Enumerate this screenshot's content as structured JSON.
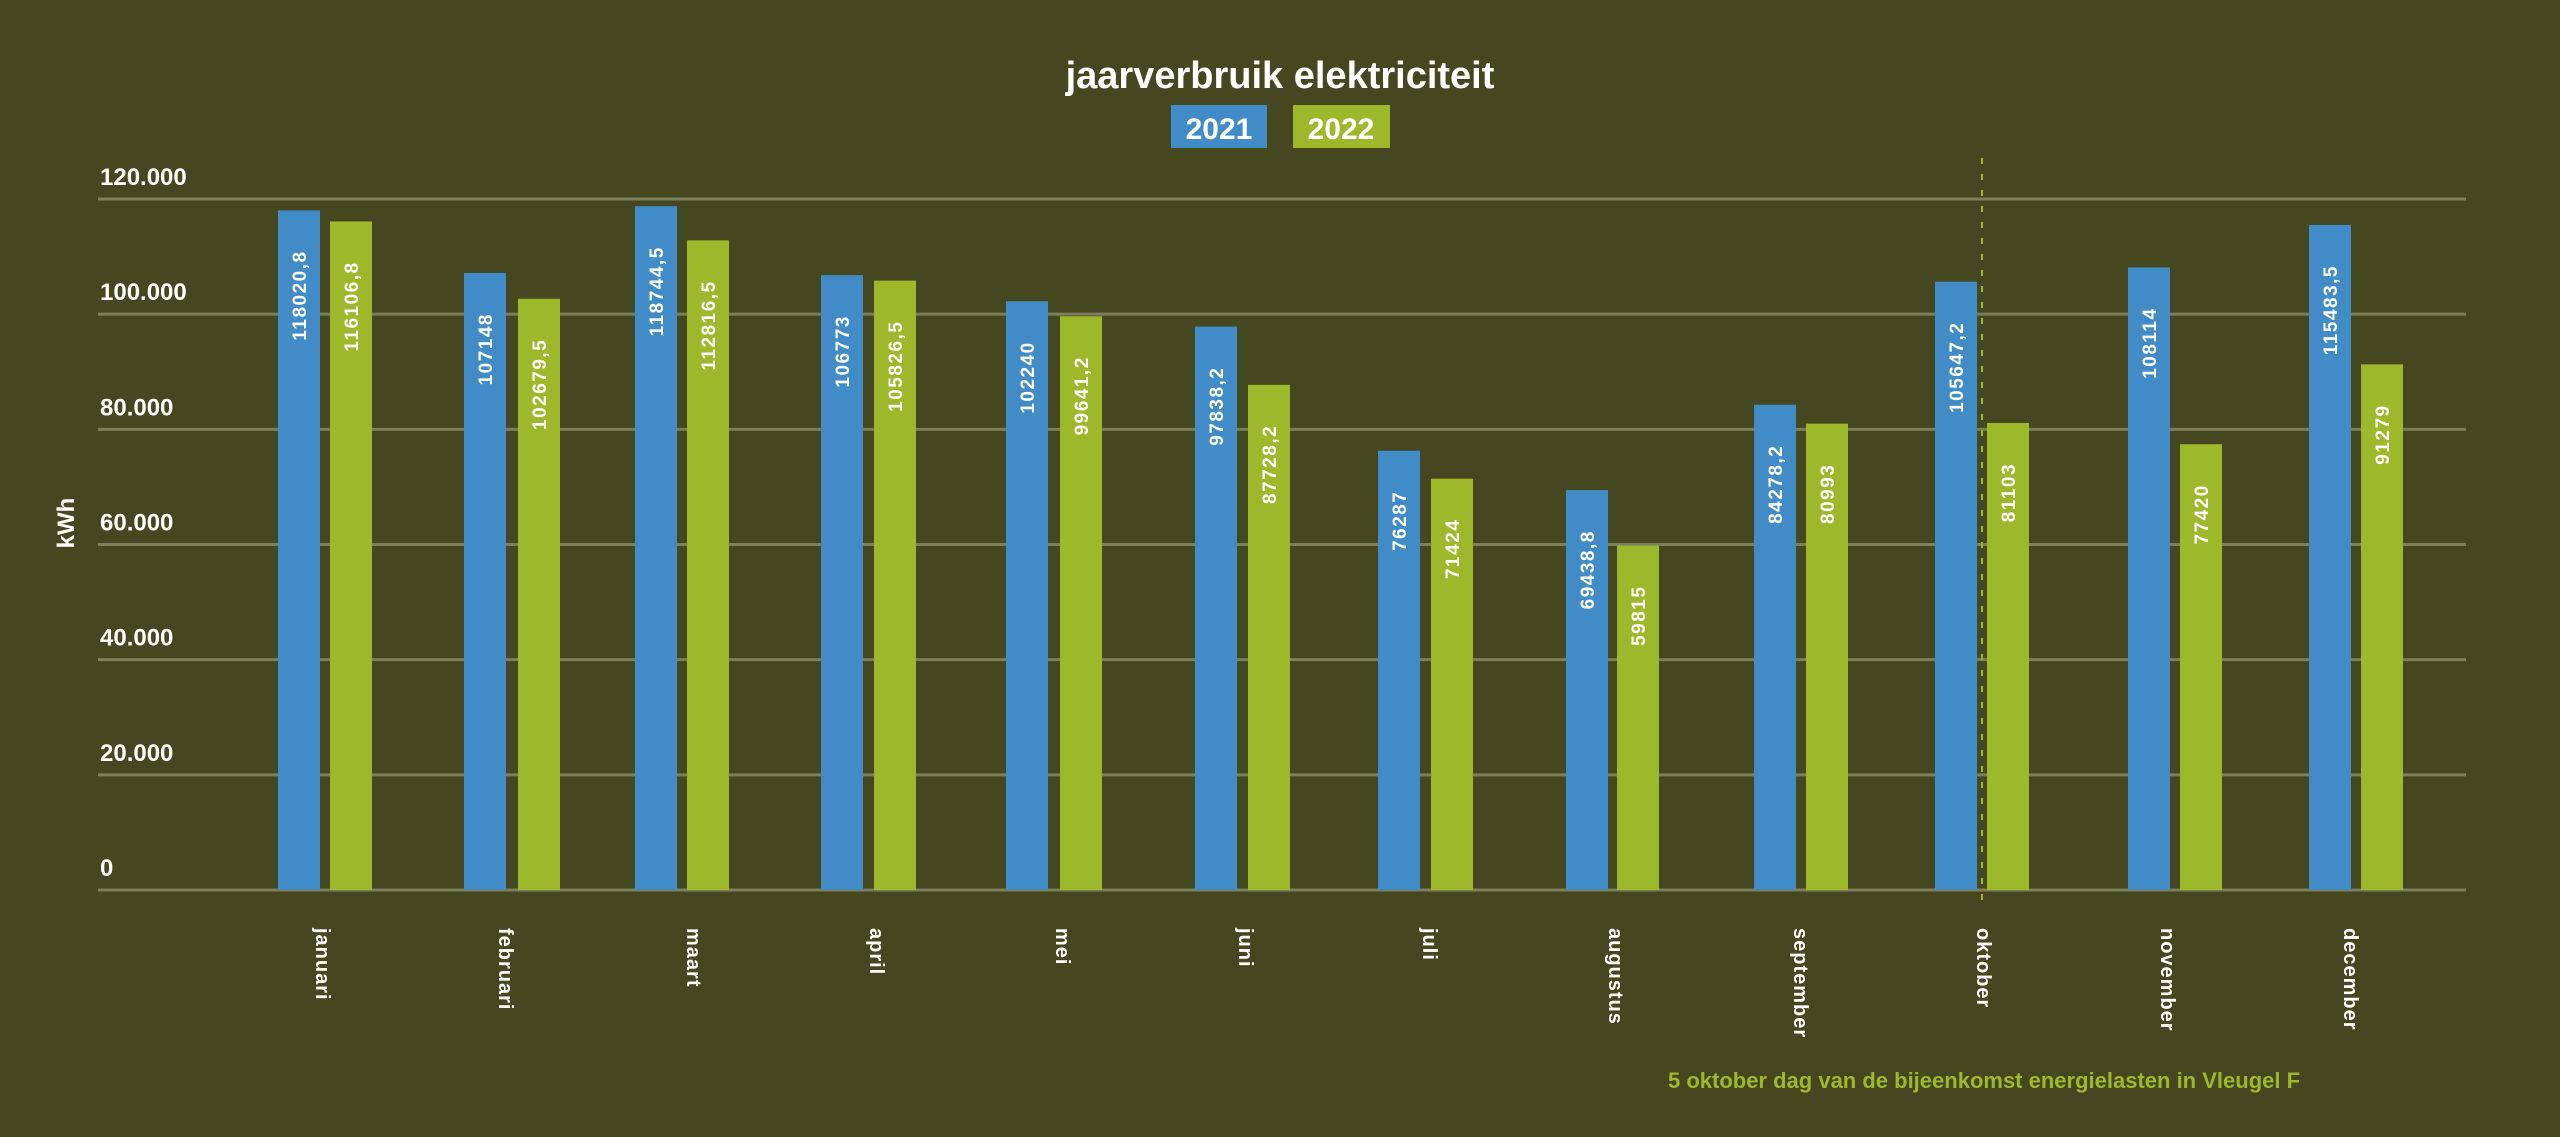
{
  "chart_data": {
    "type": "bar",
    "title": "jaarverbruik elektriciteit",
    "ylabel": "kWh",
    "xlabel": "",
    "ylim": [
      0,
      120000
    ],
    "yticks": [
      0,
      20000,
      40000,
      60000,
      80000,
      100000,
      120000
    ],
    "ytick_labels": [
      "0",
      "20.000",
      "40.000",
      "60.000",
      "80.000",
      "100.000",
      "120.000"
    ],
    "grid": true,
    "legend_position": "top-center",
    "categories": [
      "januari",
      "februari",
      "maart",
      "april",
      "mei",
      "juni",
      "juli",
      "augustus",
      "september",
      "oktober",
      "november",
      "december"
    ],
    "series": [
      {
        "name": "2021",
        "color": "#418cc6",
        "values": [
          118020.8,
          107148,
          118744.5,
          106773,
          102240,
          97838.2,
          76287,
          69438.8,
          84278.2,
          105647.2,
          108114,
          115483.5
        ],
        "labels": [
          "118020,8",
          "107148",
          "118744,5",
          "106773",
          "102240",
          "97838,2",
          "76287",
          "69438,8",
          "84278,2",
          "105647,2",
          "108114",
          "115483,5"
        ]
      },
      {
        "name": "2022",
        "color": "#9eb82b",
        "values": [
          116106.8,
          102679.5,
          112816.5,
          105826.5,
          99641.2,
          87728.2,
          71424,
          59815,
          80993,
          81103,
          77420,
          91279
        ],
        "labels": [
          "116106,8",
          "102679,5",
          "112816,5",
          "105826,5",
          "99641,2",
          "87728,2",
          "71424",
          "59815",
          "80993",
          "81103",
          "77420",
          "91279"
        ]
      }
    ],
    "annotation": {
      "category": "oktober",
      "text": "5 oktober dag van de bijeenkomst energielasten in Vleugel F",
      "color": "#9eb82b"
    }
  },
  "colors": {
    "background": "#44471f",
    "grid": "#7d7f5c"
  }
}
